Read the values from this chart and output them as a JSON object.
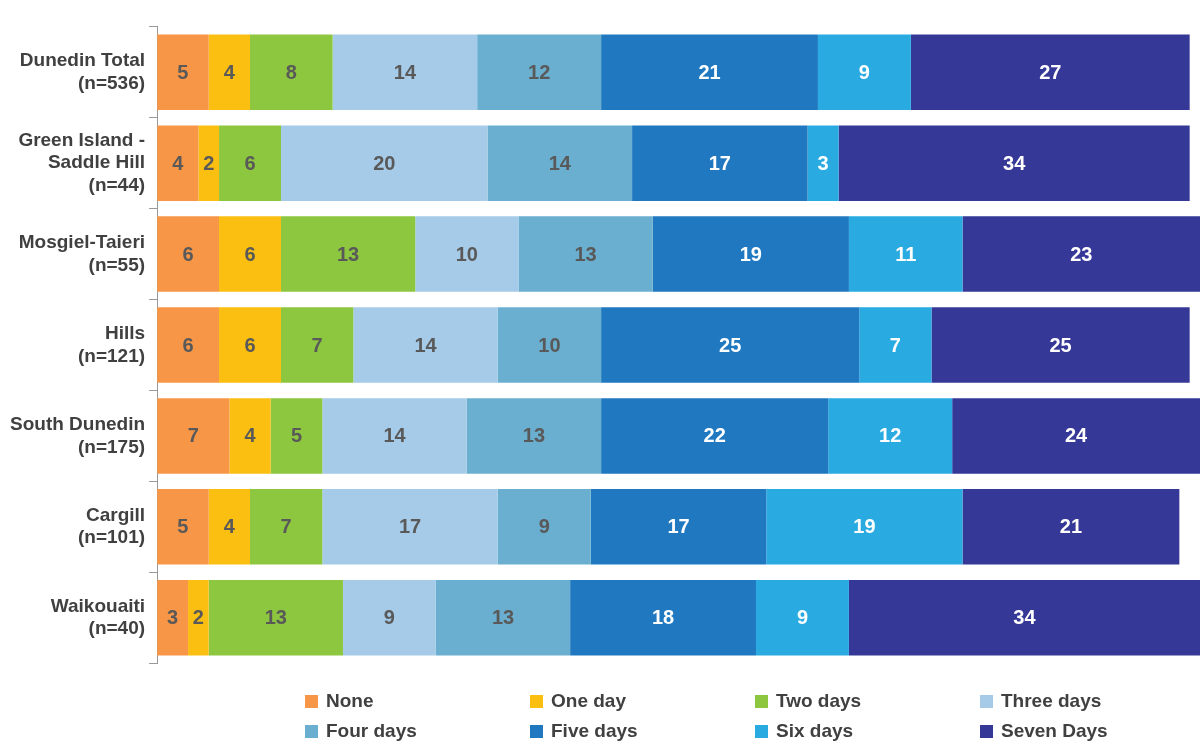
{
  "chart_data": {
    "type": "bar",
    "orientation": "horizontal",
    "stacked": true,
    "data_labels": true,
    "legend": "bottom",
    "marker": "square",
    "tick_labels": "y",
    "categories": [
      "Dunedin Total\n(n=536)",
      "Green Island -\nSaddle Hill\n(n=44)",
      "Mosgiel-Taieri\n(n=55)",
      "Hills\n(n=121)",
      "South Dunedin\n(n=175)",
      "Cargill\n(n=101)",
      "Waikouaiti\n(n=40)"
    ],
    "series": [
      {
        "name": "None",
        "color": "#f79646",
        "values": [
          5,
          4,
          6,
          6,
          7,
          5,
          3
        ]
      },
      {
        "name": "One day",
        "color": "#fbbf12",
        "values": [
          4,
          2,
          6,
          6,
          4,
          4,
          2
        ]
      },
      {
        "name": "Two days",
        "color": "#8dc63f",
        "values": [
          8,
          6,
          13,
          7,
          5,
          7,
          13
        ]
      },
      {
        "name": "Three days",
        "color": "#a6cbe8",
        "values": [
          14,
          20,
          10,
          14,
          14,
          17,
          9
        ]
      },
      {
        "name": "Four days",
        "color": "#6aafcf",
        "values": [
          12,
          14,
          13,
          10,
          13,
          9,
          13
        ]
      },
      {
        "name": "Five days",
        "color": "#2079c0",
        "values": [
          21,
          17,
          19,
          25,
          22,
          17,
          18
        ]
      },
      {
        "name": "Six days",
        "color": "#29abe2",
        "values": [
          9,
          3,
          11,
          7,
          12,
          19,
          9
        ]
      },
      {
        "name": "Seven Days",
        "color": "#353896",
        "values": [
          27,
          34,
          23,
          25,
          24,
          21,
          34
        ]
      }
    ]
  }
}
